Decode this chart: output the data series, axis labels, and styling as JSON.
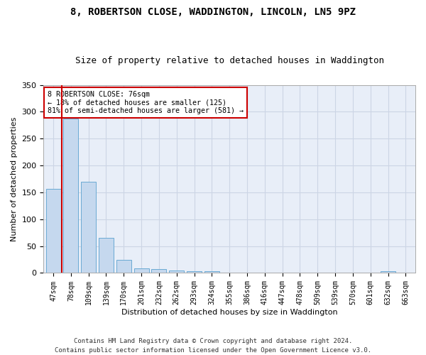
{
  "title1": "8, ROBERTSON CLOSE, WADDINGTON, LINCOLN, LN5 9PZ",
  "title2": "Size of property relative to detached houses in Waddington",
  "xlabel": "Distribution of detached houses by size in Waddington",
  "ylabel": "Number of detached properties",
  "bar_labels": [
    "47sqm",
    "78sqm",
    "109sqm",
    "139sqm",
    "170sqm",
    "201sqm",
    "232sqm",
    "262sqm",
    "293sqm",
    "324sqm",
    "355sqm",
    "386sqm",
    "416sqm",
    "447sqm",
    "478sqm",
    "509sqm",
    "539sqm",
    "570sqm",
    "601sqm",
    "632sqm",
    "663sqm"
  ],
  "bar_heights": [
    156,
    287,
    170,
    65,
    25,
    9,
    7,
    5,
    3,
    3,
    0,
    0,
    0,
    0,
    0,
    0,
    0,
    0,
    0,
    3,
    0
  ],
  "bar_color": "#c5d8ee",
  "bar_edge_color": "#6aaad4",
  "vline_color": "#cc0000",
  "annotation_line1": "8 ROBERTSON CLOSE: 76sqm",
  "annotation_line2": "← 18% of detached houses are smaller (125)",
  "annotation_line3": "81% of semi-detached houses are larger (581) →",
  "annotation_box_color": "#ffffff",
  "annotation_box_edge": "#cc0000",
  "ylim": [
    0,
    350
  ],
  "yticks": [
    0,
    50,
    100,
    150,
    200,
    250,
    300,
    350
  ],
  "grid_color": "#ccd5e5",
  "bg_color": "#e8eef8",
  "footer": "Contains HM Land Registry data © Crown copyright and database right 2024.\nContains public sector information licensed under the Open Government Licence v3.0.",
  "title1_fontsize": 10,
  "title2_fontsize": 9,
  "tick_fontsize": 7,
  "ylabel_fontsize": 8,
  "xlabel_fontsize": 8,
  "footer_fontsize": 6.5
}
